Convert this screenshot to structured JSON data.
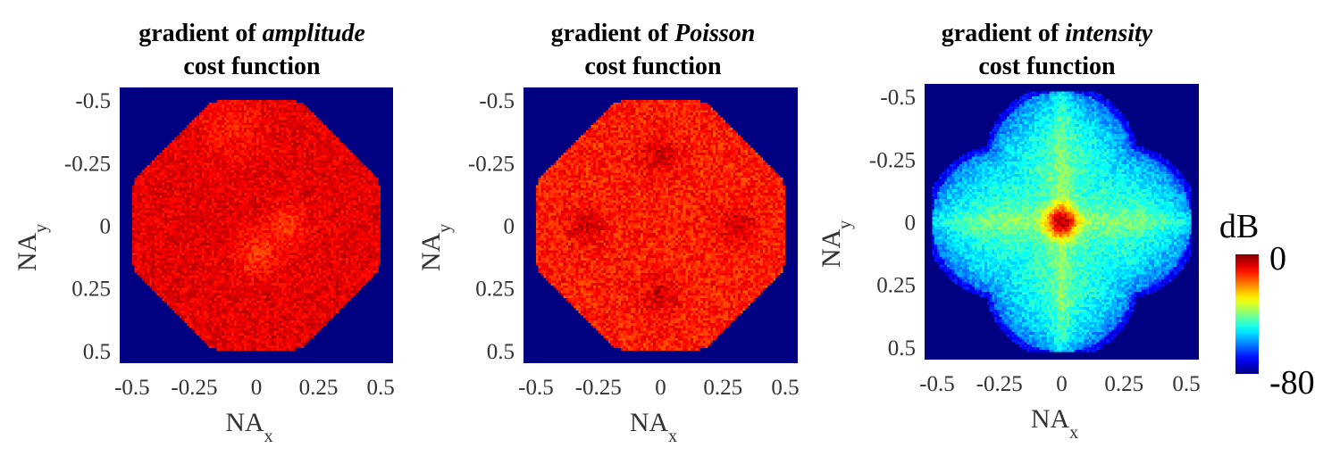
{
  "chart_data": [
    {
      "type": "heatmap",
      "title_prefix": "gradient of ",
      "title_emph": "amplitude",
      "title_line2": "cost function",
      "xlabel": "NA",
      "xlabel_sub": "x",
      "ylabel": "NA",
      "ylabel_sub": "y",
      "x_ticks": [
        "-0.5",
        "-0.25",
        "0",
        "0.25",
        "0.5"
      ],
      "y_ticks": [
        "-0.5",
        "-0.25",
        "0",
        "0.25",
        "0.5"
      ],
      "xlim": [
        -0.55,
        0.55
      ],
      "ylim": [
        -0.55,
        0.55
      ],
      "y_direction": "reversed",
      "colormap": "jet",
      "background_db": -80,
      "pupil_shape": "octagonal disk",
      "pupil_radius_NA": 0.5,
      "pupil_level_db": -8,
      "noise_db": 4,
      "features": [
        {
          "x": -0.1,
          "y": -0.4,
          "level_db": -12,
          "size": 0.12
        },
        {
          "x": 0.12,
          "y": 0.0,
          "level_db": -14,
          "size": 0.08
        },
        {
          "x": 0.0,
          "y": 0.12,
          "level_db": -14,
          "size": 0.08
        }
      ]
    },
    {
      "type": "heatmap",
      "title_prefix": "gradient of ",
      "title_emph": "Poisson",
      "title_line2": "cost function",
      "xlabel": "NA",
      "xlabel_sub": "x",
      "ylabel": "NA",
      "ylabel_sub": "y",
      "x_ticks": [
        "-0.5",
        "-0.25",
        "0",
        "0.25",
        "0.5"
      ],
      "y_ticks": [
        "-0.5",
        "-0.25",
        "0",
        "0.25",
        "0.5"
      ],
      "xlim": [
        -0.55,
        0.55
      ],
      "ylim": [
        -0.55,
        0.55
      ],
      "y_direction": "reversed",
      "colormap": "jet",
      "background_db": -80,
      "pupil_shape": "octagonal disk",
      "pupil_radius_NA": 0.5,
      "pupil_level_db": -12,
      "noise_db": 5,
      "features": [
        {
          "x": 0.0,
          "y": -0.28,
          "level_db": -6,
          "size": 0.07
        },
        {
          "x": 0.0,
          "y": 0.28,
          "level_db": -6,
          "size": 0.07
        },
        {
          "x": -0.3,
          "y": 0.0,
          "level_db": -6,
          "size": 0.07
        },
        {
          "x": 0.3,
          "y": 0.0,
          "level_db": -6,
          "size": 0.07
        }
      ]
    },
    {
      "type": "heatmap",
      "title_prefix": "gradient of ",
      "title_emph": "intensity",
      "title_line2": "cost function",
      "xlabel": "NA",
      "xlabel_sub": "x",
      "ylabel": "NA",
      "ylabel_sub": "y",
      "x_ticks": [
        "-0.5",
        "-0.25",
        "0",
        "0.25",
        "0.5"
      ],
      "y_ticks": [
        "-0.5",
        "-0.25",
        "0",
        "0.25",
        "0.5"
      ],
      "xlim": [
        -0.55,
        0.55
      ],
      "ylim": [
        -0.55,
        0.55
      ],
      "y_direction": "reversed",
      "colormap": "jet",
      "background_db": -80,
      "pupil_shape": "four-lobed cross",
      "pupil_radius_NA": 0.52,
      "pupil_level_db": -48,
      "center_peak_db": -5,
      "noise_db": 5,
      "features": []
    }
  ],
  "colorbar": {
    "label": "dB",
    "max_label": "0",
    "min_label": "-80",
    "range": [
      -80,
      0
    ],
    "colormap": "jet"
  }
}
